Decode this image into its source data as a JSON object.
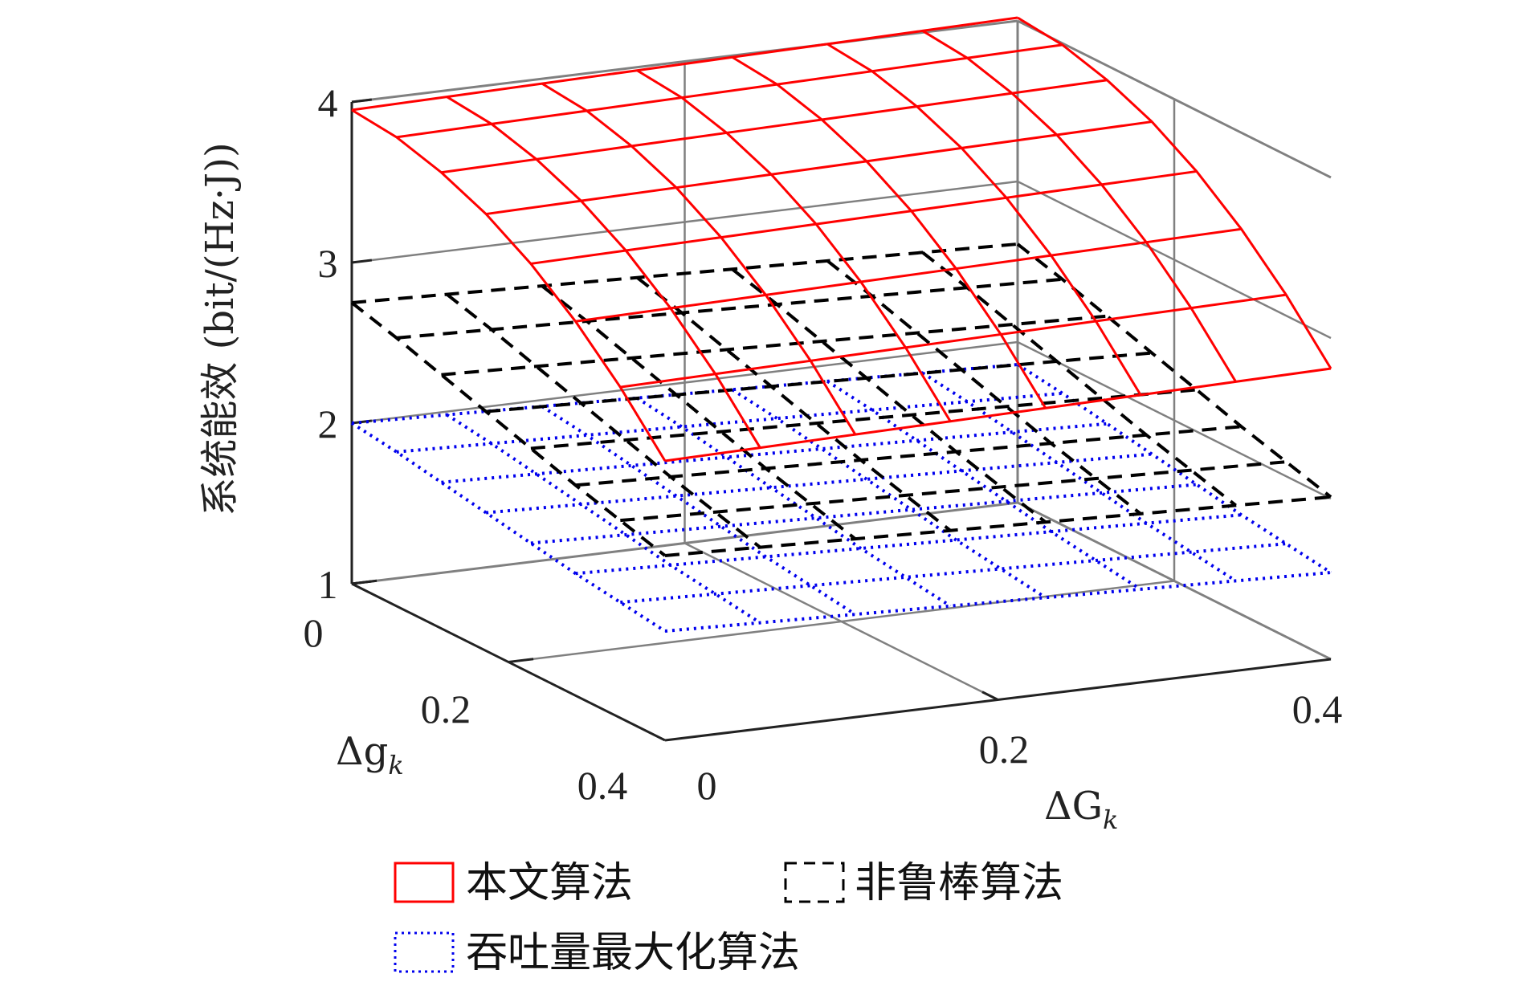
{
  "chart_data": {
    "type": "surface",
    "zlabel": "系统能效 (bit/(Hz·J))",
    "xlabel": "ΔG",
    "xlabel_sub": "k",
    "ylabel": "Δg",
    "ylabel_sub": "k",
    "xlim": [
      0,
      0.4
    ],
    "ylim": [
      0,
      0.4
    ],
    "zlim": [
      1,
      4
    ],
    "x_ticks": [
      "0",
      "0.2",
      "0.4"
    ],
    "y_ticks": [
      "0",
      "0.2",
      "0.4"
    ],
    "z_ticks": [
      "1",
      "2",
      "3",
      "4"
    ],
    "grid": true,
    "legend_position": "bottom",
    "grid_x": [
      0,
      0.0571,
      0.1143,
      0.1714,
      0.2286,
      0.2857,
      0.3429,
      0.4
    ],
    "grid_y": [
      0,
      0.0571,
      0.1143,
      0.1714,
      0.2286,
      0.2857,
      0.3429,
      0.4
    ],
    "series": [
      {
        "name": "本文算法",
        "color": "#ff0000",
        "style": "solid",
        "values": [
          [
            3.95,
            3.96,
            3.97,
            3.98,
            3.99,
            4.0,
            4.01,
            4.02
          ],
          [
            3.92,
            3.93,
            3.94,
            3.95,
            3.96,
            3.97,
            3.98,
            3.99
          ],
          [
            3.84,
            3.85,
            3.86,
            3.87,
            3.88,
            3.89,
            3.9,
            3.91
          ],
          [
            3.72,
            3.73,
            3.74,
            3.75,
            3.76,
            3.77,
            3.78,
            3.79
          ],
          [
            3.55,
            3.56,
            3.57,
            3.58,
            3.59,
            3.6,
            3.61,
            3.62
          ],
          [
            3.33,
            3.34,
            3.35,
            3.36,
            3.37,
            3.38,
            3.39,
            3.4
          ],
          [
            3.06,
            3.07,
            3.08,
            3.09,
            3.1,
            3.11,
            3.12,
            3.13
          ],
          [
            2.74,
            2.75,
            2.76,
            2.77,
            2.78,
            2.79,
            2.8,
            2.81
          ]
        ]
      },
      {
        "name": "非鲁棒算法",
        "color": "#000000",
        "style": "dashed",
        "values": [
          [
            2.75,
            2.73,
            2.71,
            2.69,
            2.67,
            2.65,
            2.63,
            2.61
          ],
          [
            2.67,
            2.65,
            2.63,
            2.61,
            2.59,
            2.57,
            2.55,
            2.53
          ],
          [
            2.58,
            2.56,
            2.54,
            2.52,
            2.5,
            2.48,
            2.46,
            2.44
          ],
          [
            2.49,
            2.47,
            2.45,
            2.43,
            2.41,
            2.39,
            2.37,
            2.35
          ],
          [
            2.4,
            2.38,
            2.36,
            2.34,
            2.32,
            2.3,
            2.28,
            2.26
          ],
          [
            2.31,
            2.29,
            2.27,
            2.25,
            2.23,
            2.21,
            2.19,
            2.17
          ],
          [
            2.23,
            2.21,
            2.19,
            2.17,
            2.15,
            2.13,
            2.11,
            2.09
          ],
          [
            2.15,
            2.13,
            2.11,
            2.09,
            2.07,
            2.05,
            2.03,
            2.01
          ]
        ]
      },
      {
        "name": "吞吐量最大化算法",
        "color": "#0000ee",
        "style": "dotted",
        "values": [
          [
            2.0,
            1.98,
            1.96,
            1.94,
            1.92,
            1.9,
            1.88,
            1.86
          ],
          [
            1.96,
            1.94,
            1.92,
            1.9,
            1.88,
            1.86,
            1.84,
            1.82
          ],
          [
            1.91,
            1.89,
            1.87,
            1.85,
            1.83,
            1.81,
            1.79,
            1.77
          ],
          [
            1.86,
            1.84,
            1.82,
            1.8,
            1.78,
            1.76,
            1.74,
            1.72
          ],
          [
            1.81,
            1.79,
            1.77,
            1.75,
            1.73,
            1.71,
            1.69,
            1.67
          ],
          [
            1.76,
            1.74,
            1.72,
            1.7,
            1.68,
            1.66,
            1.64,
            1.62
          ],
          [
            1.72,
            1.7,
            1.68,
            1.66,
            1.64,
            1.62,
            1.6,
            1.58
          ],
          [
            1.68,
            1.66,
            1.64,
            1.62,
            1.6,
            1.58,
            1.56,
            1.54
          ]
        ]
      }
    ]
  }
}
